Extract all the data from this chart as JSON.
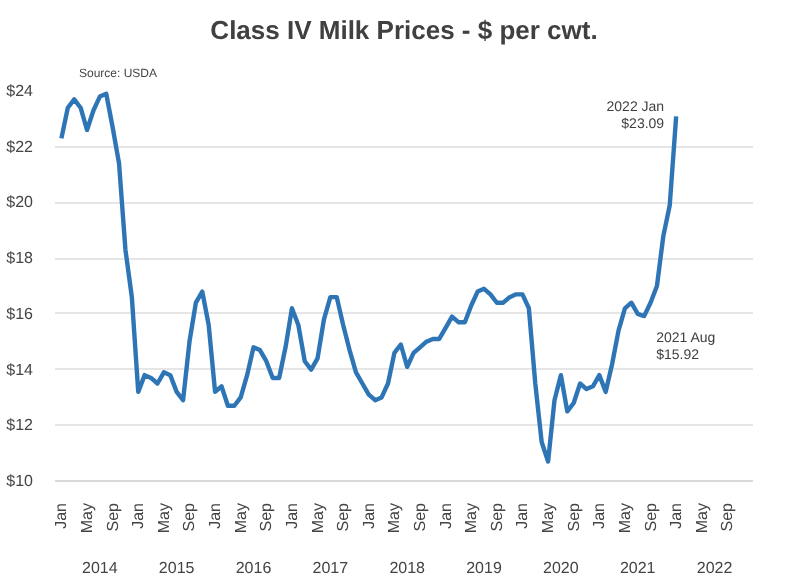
{
  "chart_data": {
    "type": "line",
    "title": "Class IV Milk Prices - $ per cwt.",
    "x": [
      "2014-01",
      "2014-02",
      "2014-03",
      "2014-04",
      "2014-05",
      "2014-06",
      "2014-07",
      "2014-08",
      "2014-09",
      "2014-10",
      "2014-11",
      "2014-12",
      "2015-01",
      "2015-02",
      "2015-03",
      "2015-04",
      "2015-05",
      "2015-06",
      "2015-07",
      "2015-08",
      "2015-09",
      "2015-10",
      "2015-11",
      "2015-12",
      "2016-01",
      "2016-02",
      "2016-03",
      "2016-04",
      "2016-05",
      "2016-06",
      "2016-07",
      "2016-08",
      "2016-09",
      "2016-10",
      "2016-11",
      "2016-12",
      "2017-01",
      "2017-02",
      "2017-03",
      "2017-04",
      "2017-05",
      "2017-06",
      "2017-07",
      "2017-08",
      "2017-09",
      "2017-10",
      "2017-11",
      "2017-12",
      "2018-01",
      "2018-02",
      "2018-03",
      "2018-04",
      "2018-05",
      "2018-06",
      "2018-07",
      "2018-08",
      "2018-09",
      "2018-10",
      "2018-11",
      "2018-12",
      "2019-01",
      "2019-02",
      "2019-03",
      "2019-04",
      "2019-05",
      "2019-06",
      "2019-07",
      "2019-08",
      "2019-09",
      "2019-10",
      "2019-11",
      "2019-12",
      "2020-01",
      "2020-02",
      "2020-03",
      "2020-04",
      "2020-05",
      "2020-06",
      "2020-07",
      "2020-08",
      "2020-09",
      "2020-10",
      "2020-11",
      "2020-12",
      "2021-01",
      "2021-02",
      "2021-03",
      "2021-04",
      "2021-05",
      "2021-06",
      "2021-07",
      "2021-08",
      "2021-09",
      "2021-10",
      "2021-11",
      "2021-12",
      "2022-01"
    ],
    "series": [
      {
        "color": "#2e75b6",
        "values": [
          22.3,
          23.4,
          23.7,
          23.4,
          22.6,
          23.3,
          23.8,
          23.9,
          22.7,
          21.4,
          18.3,
          16.6,
          13.2,
          13.8,
          13.7,
          13.5,
          13.9,
          13.8,
          13.2,
          12.9,
          15.0,
          16.4,
          16.8,
          15.6,
          13.2,
          13.4,
          12.7,
          12.7,
          13.0,
          13.8,
          14.8,
          14.7,
          14.3,
          13.7,
          13.7,
          14.8,
          16.2,
          15.6,
          14.3,
          14.0,
          14.4,
          15.8,
          16.6,
          16.6,
          15.6,
          14.7,
          13.9,
          13.5,
          13.1,
          12.9,
          13.0,
          13.5,
          14.6,
          14.9,
          14.1,
          14.6,
          14.8,
          15.0,
          15.1,
          15.1,
          15.5,
          15.9,
          15.7,
          15.7,
          16.3,
          16.8,
          16.9,
          16.7,
          16.4,
          16.4,
          16.6,
          16.7,
          16.7,
          16.2,
          13.5,
          11.4,
          10.7,
          12.9,
          13.8,
          12.5,
          12.8,
          13.5,
          13.3,
          13.4,
          13.8,
          13.2,
          14.2,
          15.4,
          16.2,
          16.4,
          16.0,
          15.92,
          16.4,
          17.0,
          18.8,
          19.9,
          23.09
        ]
      }
    ],
    "xlim": [
      "2013-12",
      "2023-01"
    ],
    "xticks": [
      {
        "value": "2014-01",
        "label": "Jan"
      },
      {
        "value": "2014-05",
        "label": "May"
      },
      {
        "value": "2014-09",
        "label": "Sep"
      },
      {
        "value": "2015-01",
        "label": "Jan"
      },
      {
        "value": "2015-05",
        "label": "May"
      },
      {
        "value": "2015-09",
        "label": "Sep"
      },
      {
        "value": "2016-01",
        "label": "Jan"
      },
      {
        "value": "2016-05",
        "label": "May"
      },
      {
        "value": "2016-09",
        "label": "Sep"
      },
      {
        "value": "2017-01",
        "label": "Jan"
      },
      {
        "value": "2017-05",
        "label": "May"
      },
      {
        "value": "2017-09",
        "label": "Sep"
      },
      {
        "value": "2018-01",
        "label": "Jan"
      },
      {
        "value": "2018-05",
        "label": "May"
      },
      {
        "value": "2018-09",
        "label": "Sep"
      },
      {
        "value": "2019-01",
        "label": "Jan"
      },
      {
        "value": "2019-05",
        "label": "May"
      },
      {
        "value": "2019-09",
        "label": "Sep"
      },
      {
        "value": "2020-01",
        "label": "Jan"
      },
      {
        "value": "2020-05",
        "label": "May"
      },
      {
        "value": "2020-09",
        "label": "Sep"
      },
      {
        "value": "2021-01",
        "label": "Jan"
      },
      {
        "value": "2021-05",
        "label": "May"
      },
      {
        "value": "2021-09",
        "label": "Sep"
      },
      {
        "value": "2022-01",
        "label": "Jan"
      },
      {
        "value": "2022-05",
        "label": "May"
      },
      {
        "value": "2022-09",
        "label": "Sep"
      }
    ],
    "x2ticks": [
      {
        "value": "2014-07",
        "label": "2014"
      },
      {
        "value": "2015-07",
        "label": "2015"
      },
      {
        "value": "2016-07",
        "label": "2016"
      },
      {
        "value": "2017-07",
        "label": "2017"
      },
      {
        "value": "2018-07",
        "label": "2018"
      },
      {
        "value": "2019-07",
        "label": "2019"
      },
      {
        "value": "2020-07",
        "label": "2020"
      },
      {
        "value": "2021-07",
        "label": "2021"
      },
      {
        "value": "2022-07",
        "label": "2022"
      }
    ],
    "ylim": [
      10,
      24
    ],
    "x2lim": [
      "2013-12",
      "2023-01"
    ],
    "yticks": [
      {
        "value": 10,
        "label": "$10"
      },
      {
        "value": 12,
        "label": "$12"
      },
      {
        "value": 14,
        "label": "$14"
      },
      {
        "value": 16,
        "label": "$16"
      },
      {
        "value": 18,
        "label": "$18"
      },
      {
        "value": 20,
        "label": "$20"
      },
      {
        "value": 22,
        "label": "$22"
      },
      {
        "value": 24,
        "label": "$24"
      }
    ],
    "grid": "y",
    "marker": "none",
    "line_style": "solid",
    "annotations": [
      "Source: USDA",
      {
        "text": "2022 Jan\n$23.09",
        "x": "2022-01",
        "y": 23.09
      },
      {
        "text": "2021 Aug\n$15.92",
        "x": "2021-08",
        "y": 15.92
      }
    ]
  }
}
